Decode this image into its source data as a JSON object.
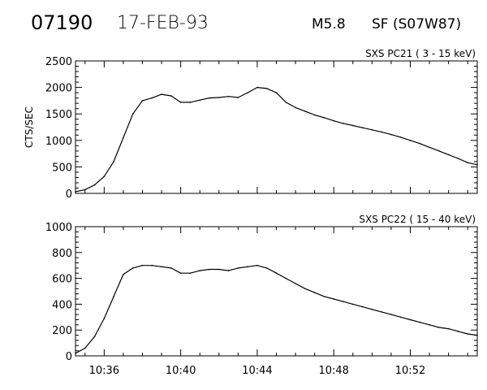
{
  "header": {
    "event_id": "07190",
    "date": "17-FEB-93",
    "flare_class": "M5.8",
    "location": "SF (S07W87)"
  },
  "chart_data": [
    {
      "type": "line",
      "title": "SXS PC21  (  3 - 15 keV)",
      "xlabel": "",
      "ylabel": "CTS/SEC",
      "x_tick_labels": [],
      "y_ticks": [
        0,
        500,
        1000,
        1500,
        2000,
        2500
      ],
      "xlim": [
        "10:34:30",
        "10:55:30"
      ],
      "ylim": [
        0,
        2500
      ],
      "series": [
        {
          "x": [
            "10:34:30",
            "10:35:00",
            "10:35:30",
            "10:36:00",
            "10:36:30",
            "10:37:00",
            "10:37:30",
            "10:38:00",
            "10:38:30",
            "10:39:00",
            "10:39:30",
            "10:40:00",
            "10:40:30",
            "10:41:00",
            "10:41:30",
            "10:42:00",
            "10:42:30",
            "10:43:00",
            "10:43:30",
            "10:44:00",
            "10:44:30",
            "10:45:00",
            "10:45:30",
            "10:46:00",
            "10:46:30",
            "10:47:00",
            "10:47:30",
            "10:48:00",
            "10:48:30",
            "10:49:00",
            "10:49:30",
            "10:50:00",
            "10:50:30",
            "10:51:00",
            "10:51:30",
            "10:52:00",
            "10:52:30",
            "10:53:00",
            "10:53:30",
            "10:54:00",
            "10:54:30",
            "10:55:00",
            "10:55:30"
          ],
          "values": [
            30,
            70,
            160,
            320,
            600,
            1050,
            1500,
            1750,
            1800,
            1870,
            1840,
            1720,
            1720,
            1760,
            1800,
            1810,
            1830,
            1810,
            1900,
            2000,
            1980,
            1900,
            1720,
            1620,
            1550,
            1480,
            1430,
            1370,
            1320,
            1280,
            1240,
            1200,
            1160,
            1110,
            1060,
            1000,
            940,
            870,
            800,
            730,
            660,
            580,
            540
          ]
        }
      ]
    },
    {
      "type": "line",
      "title": "SXS PC22  ( 15 - 40 keV)",
      "xlabel": "",
      "ylabel": "",
      "x_tick_labels": [
        "10:36",
        "10:40",
        "10:44",
        "10:48",
        "10:52"
      ],
      "y_ticks": [
        0,
        200,
        400,
        600,
        800,
        1000
      ],
      "xlim": [
        "10:34:30",
        "10:55:30"
      ],
      "ylim": [
        0,
        1000
      ],
      "series": [
        {
          "x": [
            "10:34:30",
            "10:35:00",
            "10:35:30",
            "10:36:00",
            "10:36:30",
            "10:37:00",
            "10:37:30",
            "10:38:00",
            "10:38:30",
            "10:39:00",
            "10:39:30",
            "10:40:00",
            "10:40:30",
            "10:41:00",
            "10:41:30",
            "10:42:00",
            "10:42:30",
            "10:43:00",
            "10:43:30",
            "10:44:00",
            "10:44:30",
            "10:45:00",
            "10:45:30",
            "10:46:00",
            "10:46:30",
            "10:47:00",
            "10:47:30",
            "10:48:00",
            "10:48:30",
            "10:49:00",
            "10:49:30",
            "10:50:00",
            "10:50:30",
            "10:51:00",
            "10:51:30",
            "10:52:00",
            "10:52:30",
            "10:53:00",
            "10:53:30",
            "10:54:00",
            "10:54:30",
            "10:55:00",
            "10:55:30"
          ],
          "values": [
            20,
            60,
            150,
            290,
            460,
            630,
            680,
            700,
            700,
            690,
            680,
            640,
            640,
            660,
            670,
            670,
            660,
            680,
            690,
            700,
            680,
            640,
            600,
            560,
            520,
            490,
            460,
            440,
            420,
            400,
            380,
            360,
            340,
            320,
            300,
            280,
            260,
            240,
            220,
            210,
            190,
            170,
            160
          ]
        }
      ]
    }
  ]
}
